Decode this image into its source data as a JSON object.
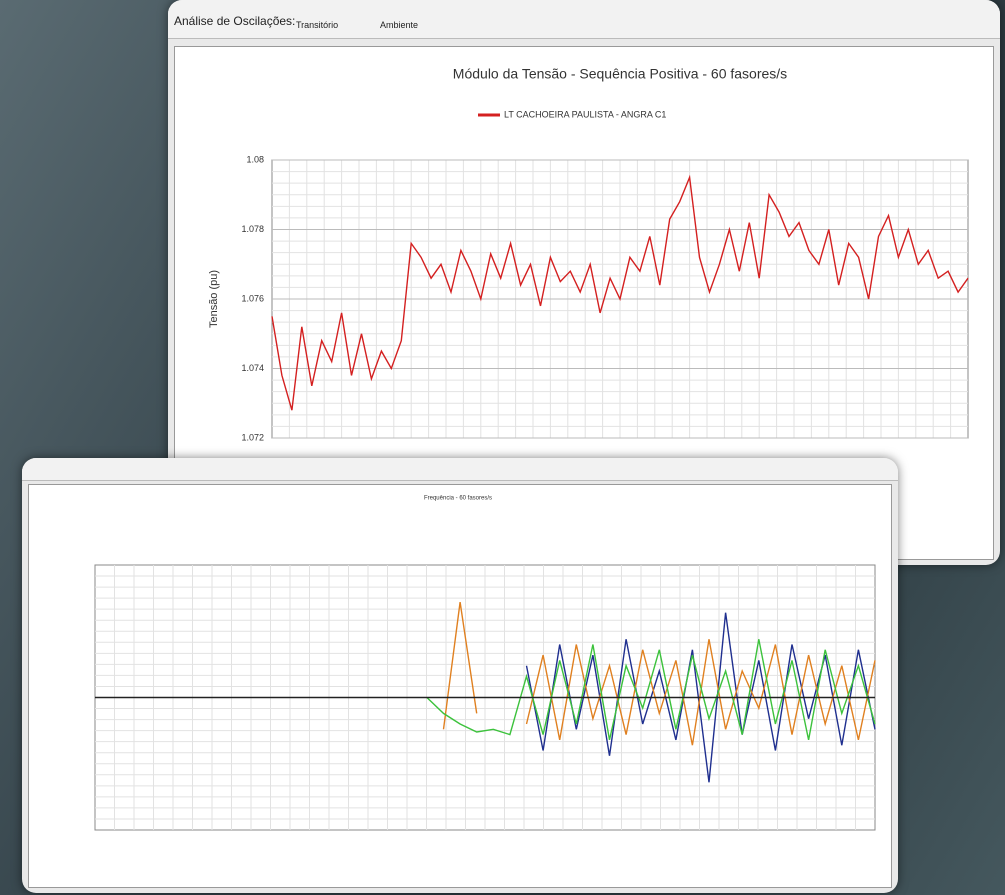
{
  "toolbar": {
    "label": "Análise de Oscilações:",
    "buttons": [
      "Transitório",
      "Ambiente"
    ]
  },
  "chart_data": [
    {
      "type": "line",
      "title": "Módulo da Tensão - Sequência Positiva - 60 fasores/s",
      "y_label": "Tensão (pu)",
      "ylim": [
        1.072,
        1.08
      ],
      "yticks": [
        1.072,
        1.074,
        1.076,
        1.078,
        1.08
      ],
      "grid": true,
      "series": [
        {
          "name": "LT CACHOEIRA PAULISTA - ANGRA C1",
          "color": "#d42020",
          "values": [
            1.0755,
            1.0738,
            1.0728,
            1.0752,
            1.0735,
            1.0748,
            1.0742,
            1.0756,
            1.0738,
            1.075,
            1.0737,
            1.0745,
            1.074,
            1.0748,
            1.0776,
            1.0772,
            1.0766,
            1.077,
            1.0762,
            1.0774,
            1.0768,
            1.076,
            1.0773,
            1.0766,
            1.0776,
            1.0764,
            1.077,
            1.0758,
            1.0772,
            1.0765,
            1.0768,
            1.0762,
            1.077,
            1.0756,
            1.0766,
            1.076,
            1.0772,
            1.0768,
            1.0778,
            1.0764,
            1.0783,
            1.0788,
            1.0795,
            1.0772,
            1.0762,
            1.077,
            1.078,
            1.0768,
            1.0782,
            1.0766,
            1.079,
            1.0785,
            1.0778,
            1.0782,
            1.0774,
            1.077,
            1.078,
            1.0764,
            1.0776,
            1.0772,
            1.076,
            1.0778,
            1.0784,
            1.0772,
            1.078,
            1.077,
            1.0774,
            1.0766,
            1.0768,
            1.0762,
            1.0766
          ]
        }
      ]
    },
    {
      "type": "line",
      "title": "Frequência - 60 fasores/s",
      "ylim": [
        0,
        100
      ],
      "grid": true,
      "series": [
        {
          "color": "#1f2f8f",
          "values": [
            null,
            null,
            null,
            null,
            null,
            null,
            null,
            null,
            null,
            null,
            null,
            null,
            null,
            null,
            null,
            null,
            null,
            null,
            null,
            null,
            null,
            null,
            null,
            null,
            null,
            null,
            62,
            30,
            70,
            38,
            66,
            28,
            72,
            40,
            60,
            34,
            68,
            18,
            82,
            36,
            64,
            30,
            70,
            42,
            66,
            32,
            68,
            38
          ]
        },
        {
          "color": "#e08020",
          "values": [
            null,
            null,
            null,
            null,
            null,
            null,
            null,
            null,
            null,
            null,
            null,
            null,
            null,
            null,
            null,
            null,
            null,
            null,
            null,
            null,
            null,
            38,
            86,
            44,
            null,
            null,
            40,
            66,
            34,
            70,
            42,
            62,
            36,
            68,
            44,
            64,
            32,
            72,
            38,
            60,
            46,
            70,
            36,
            66,
            40,
            62,
            34,
            64
          ]
        },
        {
          "color": "#3cc23c",
          "values": [
            null,
            null,
            null,
            null,
            null,
            null,
            null,
            null,
            null,
            null,
            null,
            null,
            null,
            null,
            null,
            null,
            null,
            null,
            null,
            null,
            50,
            44,
            40,
            37,
            38,
            36,
            58,
            36,
            64,
            40,
            70,
            34,
            62,
            46,
            68,
            38,
            66,
            42,
            60,
            36,
            72,
            40,
            64,
            34,
            68,
            44,
            62,
            40
          ]
        },
        {
          "color": "#222222",
          "values": [
            50,
            50,
            50,
            50,
            50,
            50,
            50,
            50,
            50,
            50,
            50,
            50,
            50,
            50,
            50,
            50,
            50,
            50,
            50,
            50,
            50,
            50,
            50,
            50,
            50,
            50,
            50,
            50,
            50,
            50,
            50,
            50,
            50,
            50,
            50,
            50,
            50,
            50,
            50,
            50,
            50,
            50,
            50,
            50,
            50,
            50,
            50,
            50
          ]
        }
      ]
    }
  ]
}
